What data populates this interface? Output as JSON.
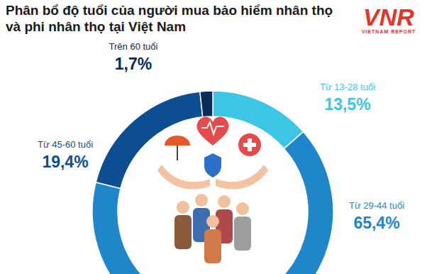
{
  "chart_data": {
    "type": "donut",
    "title": "Phân bổ độ tuổi của người mua bảo hiểm nhân thọ và phi nhân thọ tại Việt Nam",
    "categories": [
      "Từ 13-28 tuổi",
      "Từ 29-44 tuổi",
      "Từ 45-60 tuổi",
      "Trên 60 tuổi"
    ],
    "values": [
      13.5,
      65.4,
      19.4,
      1.7
    ],
    "value_labels": [
      "13,5%",
      "65,4%",
      "19,4%",
      "1,7%"
    ],
    "colors": [
      "#3cc6e6",
      "#1f86c9",
      "#0d4e92",
      "#0a2c5a"
    ],
    "data_labels": true,
    "annotations": [
      "VNR",
      "VIETNAM REPORT"
    ]
  }
}
